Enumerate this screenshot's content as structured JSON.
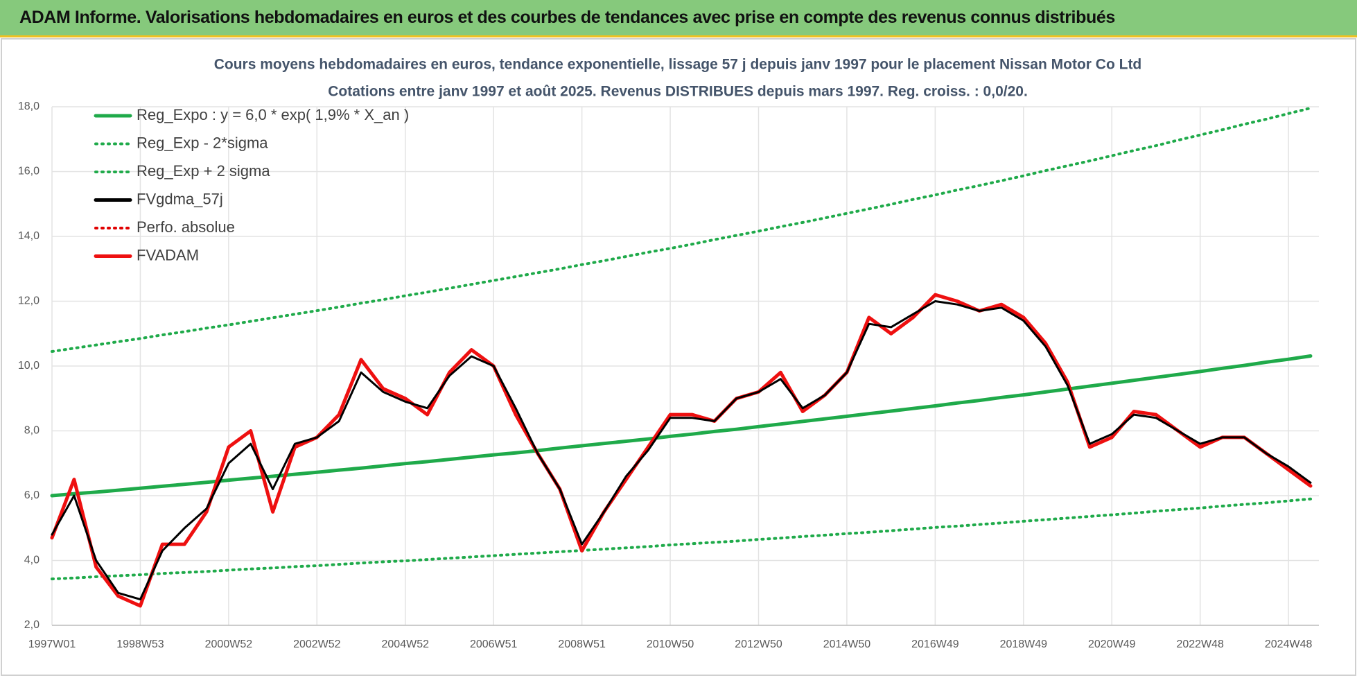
{
  "header": {
    "title": "ADAM Informe. Valorisations hebdomadaires en euros et des courbes de tendances avec prise en compte des revenus connus distribués"
  },
  "chart_data": {
    "type": "line",
    "title": "Cours moyens hebdomadaires en euros, tendance exponentielle, lissage 57 j depuis janv 1997 pour le placement Nissan Motor Co Ltd",
    "subtitle": "Cotations entre janv 1997 et août 2025. Revenus DISTRIBUES depuis mars 1997. Reg. croiss. : 0,0/20.",
    "categories": [
      "1997W01",
      null,
      null,
      null,
      "1998W53",
      null,
      null,
      null,
      "2000W52",
      null,
      null,
      null,
      "2002W52",
      null,
      null,
      null,
      "2004W52",
      null,
      null,
      null,
      "2006W51",
      null,
      null,
      null,
      "2008W51",
      null,
      null,
      null,
      "2010W50",
      null,
      null,
      null,
      "2012W50",
      null,
      null,
      null,
      "2014W50",
      null,
      null,
      null,
      "2016W49",
      null,
      null,
      null,
      "2018W49",
      null,
      null,
      null,
      "2020W49",
      null,
      null,
      null,
      "2022W48",
      null,
      null,
      null,
      "2024W48",
      null
    ],
    "ylim": [
      2,
      18
    ],
    "yticks": [
      {
        "value": 2,
        "label": "2,0"
      },
      {
        "value": 4,
        "label": "4,0"
      },
      {
        "value": 6,
        "label": "6,0"
      },
      {
        "value": 8,
        "label": "8,0"
      },
      {
        "value": 10,
        "label": "10,0"
      },
      {
        "value": 12,
        "label": "12,0"
      },
      {
        "value": 14,
        "label": "14,0"
      },
      {
        "value": 16,
        "label": "16,0"
      },
      {
        "value": 18,
        "label": "18,0"
      }
    ],
    "grid": true,
    "legend": "upper left",
    "series": [
      {
        "name": "Reg_Expo : y = 6,0 * exp( 1,9% *  X_an )",
        "color": "#1faa4a",
        "style": "solid",
        "values": [
          6.0,
          6.06,
          6.11,
          6.17,
          6.23,
          6.29,
          6.35,
          6.41,
          6.48,
          6.54,
          6.6,
          6.66,
          6.72,
          6.79,
          6.85,
          6.92,
          6.99,
          7.05,
          7.12,
          7.19,
          7.26,
          7.32,
          7.39,
          7.47,
          7.54,
          7.61,
          7.68,
          7.75,
          7.83,
          7.9,
          7.98,
          8.05,
          8.13,
          8.21,
          8.29,
          8.37,
          8.45,
          8.53,
          8.61,
          8.69,
          8.77,
          8.86,
          8.94,
          9.03,
          9.11,
          9.2,
          9.29,
          9.38,
          9.47,
          9.56,
          9.65,
          9.74,
          9.83,
          9.93,
          10.02,
          10.12,
          10.21,
          10.31
        ]
      },
      {
        "name": "Reg_Exp - 2*sigma",
        "color": "#1faa4a",
        "style": "dotted",
        "values": [
          3.43,
          3.46,
          3.5,
          3.53,
          3.56,
          3.6,
          3.63,
          3.66,
          3.7,
          3.74,
          3.77,
          3.81,
          3.84,
          3.88,
          3.92,
          3.96,
          3.99,
          4.03,
          4.07,
          4.11,
          4.15,
          4.19,
          4.23,
          4.27,
          4.31,
          4.35,
          4.39,
          4.43,
          4.48,
          4.52,
          4.56,
          4.6,
          4.65,
          4.69,
          4.74,
          4.78,
          4.83,
          4.87,
          4.92,
          4.97,
          5.02,
          5.06,
          5.11,
          5.16,
          5.21,
          5.26,
          5.31,
          5.36,
          5.41,
          5.46,
          5.52,
          5.57,
          5.62,
          5.68,
          5.73,
          5.78,
          5.84,
          5.9
        ]
      },
      {
        "name": "Reg_Exp + 2 sigma",
        "color": "#1faa4a",
        "style": "dotted",
        "values": [
          10.45,
          10.55,
          10.65,
          10.75,
          10.85,
          10.96,
          11.06,
          11.17,
          11.27,
          11.38,
          11.49,
          11.6,
          11.71,
          11.82,
          11.94,
          12.05,
          12.17,
          12.28,
          12.4,
          12.52,
          12.64,
          12.76,
          12.88,
          13.0,
          13.13,
          13.25,
          13.38,
          13.51,
          13.63,
          13.76,
          13.9,
          14.03,
          14.16,
          14.3,
          14.43,
          14.57,
          14.71,
          14.85,
          14.99,
          15.14,
          15.28,
          15.43,
          15.57,
          15.72,
          15.87,
          16.03,
          16.18,
          16.33,
          16.49,
          16.65,
          16.8,
          16.97,
          17.13,
          17.29,
          17.46,
          17.62,
          17.79,
          17.96
        ]
      },
      {
        "name": "FVgdma_57j",
        "color": "#000000",
        "style": "solid",
        "values": [
          4.8,
          6.0,
          4.0,
          3.0,
          2.8,
          4.3,
          5.0,
          5.6,
          7.0,
          7.6,
          6.2,
          7.6,
          7.8,
          8.3,
          9.8,
          9.2,
          8.9,
          8.7,
          9.7,
          10.3,
          10.0,
          8.7,
          7.3,
          6.2,
          4.5,
          5.5,
          6.6,
          7.4,
          8.4,
          8.4,
          8.3,
          9.0,
          9.2,
          9.6,
          8.7,
          9.1,
          9.8,
          11.3,
          11.2,
          11.6,
          12.0,
          11.9,
          11.7,
          11.8,
          11.4,
          10.6,
          9.4,
          7.6,
          7.9,
          8.5,
          8.4,
          8.0,
          7.6,
          7.8,
          7.8,
          7.3,
          6.9,
          6.4
        ]
      },
      {
        "name": "Perfo. absolue",
        "color": "#e00000",
        "style": "dotted",
        "values": [
          4.7,
          6.5,
          3.8,
          2.9,
          2.6,
          4.5,
          4.5,
          5.5,
          7.5,
          8.0,
          5.5,
          7.5,
          7.8,
          8.5,
          10.2,
          9.3,
          9.0,
          8.5,
          9.8,
          10.5,
          10.0,
          8.5,
          7.3,
          6.2,
          4.3,
          5.5,
          6.5,
          7.5,
          8.5,
          8.5,
          8.3,
          9.0,
          9.2,
          9.8,
          8.6,
          9.1,
          9.8,
          11.5,
          11.0,
          11.5,
          12.2,
          12.0,
          11.7,
          11.9,
          11.5,
          10.7,
          9.5,
          7.5,
          7.8,
          8.6,
          8.5,
          8.0,
          7.5,
          7.8,
          7.8,
          7.3,
          6.8,
          6.3
        ]
      },
      {
        "name": "FVADAM",
        "color": "#ee1010",
        "style": "solid",
        "values": [
          4.7,
          6.5,
          3.8,
          2.9,
          2.6,
          4.5,
          4.5,
          5.5,
          7.5,
          8.0,
          5.5,
          7.5,
          7.8,
          8.5,
          10.2,
          9.3,
          9.0,
          8.5,
          9.8,
          10.5,
          10.0,
          8.5,
          7.3,
          6.2,
          4.3,
          5.5,
          6.5,
          7.5,
          8.5,
          8.5,
          8.3,
          9.0,
          9.2,
          9.8,
          8.6,
          9.1,
          9.8,
          11.5,
          11.0,
          11.5,
          12.2,
          12.0,
          11.7,
          11.9,
          11.5,
          10.7,
          9.5,
          7.5,
          7.8,
          8.6,
          8.5,
          8.0,
          7.5,
          7.8,
          7.8,
          7.3,
          6.8,
          6.3
        ]
      }
    ]
  }
}
